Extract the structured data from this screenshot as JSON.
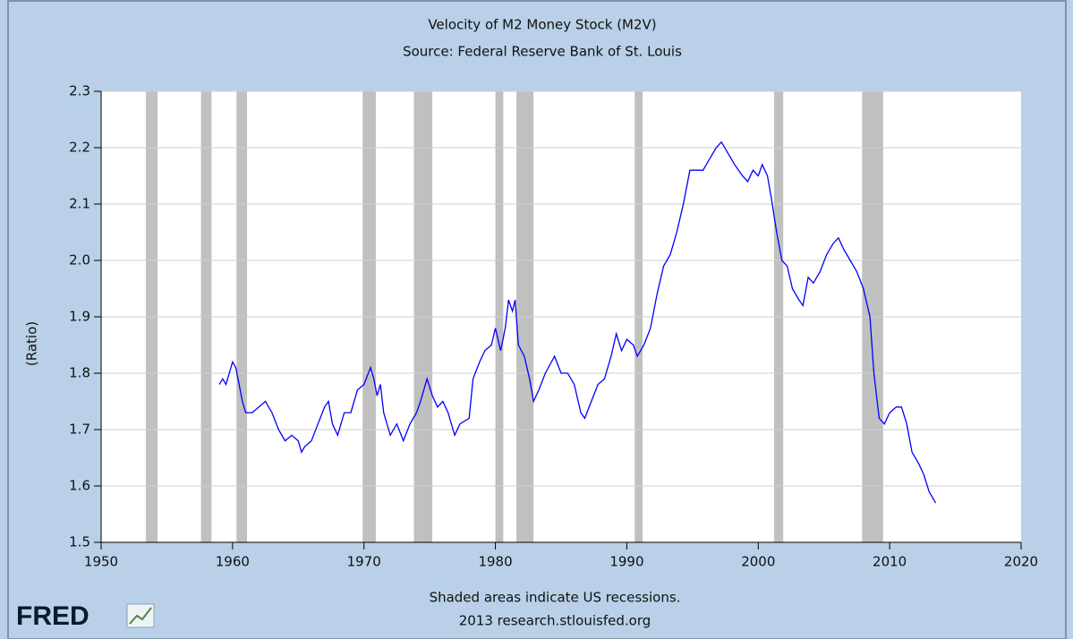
{
  "chart_data": {
    "type": "line",
    "title": "Velocity of M2 Money Stock (M2V)",
    "subtitle": "Source: Federal Reserve Bank of St. Louis",
    "y_label": "(Ratio)",
    "note": "Shaded areas indicate US recessions.",
    "source": "2013 research.stlouisfed.org",
    "logo": "FRED",
    "xlim": [
      1950,
      2020
    ],
    "xticks": [
      1950,
      1960,
      1970,
      1980,
      1990,
      2000,
      2010,
      2020
    ],
    "ylim": [
      1.5,
      2.3
    ],
    "yticks": [
      1.5,
      1.6,
      1.7,
      1.8,
      1.9,
      {
        "value": 2,
        "label": "2.0"
      },
      2.1,
      2.2,
      2.3
    ],
    "grid": true,
    "recession_color": "#c0c0c0",
    "recessions": [
      [
        1953.4,
        1954.3
      ],
      [
        1957.6,
        1958.4
      ],
      [
        1960.3,
        1961.1
      ],
      [
        1969.9,
        1970.9
      ],
      [
        1973.8,
        1975.2
      ],
      [
        1980.0,
        1980.6
      ],
      [
        1981.6,
        1982.9
      ],
      [
        1990.6,
        1991.2
      ],
      [
        2001.2,
        2001.9
      ],
      [
        2007.9,
        2009.5
      ]
    ],
    "series": [
      {
        "color": "#0000ff",
        "x": [
          1959.0,
          1959.25,
          1959.5,
          1959.75,
          1960.0,
          1960.25,
          1960.5,
          1960.75,
          1961.0,
          1961.5,
          1962.0,
          1962.5,
          1963.0,
          1963.5,
          1964.0,
          1964.5,
          1965.0,
          1965.25,
          1965.5,
          1966.0,
          1966.5,
          1967.0,
          1967.3,
          1967.6,
          1968.0,
          1968.5,
          1969.0,
          1969.5,
          1970.0,
          1970.5,
          1970.75,
          1971.0,
          1971.25,
          1971.5,
          1972.0,
          1972.5,
          1973.0,
          1973.5,
          1974.0,
          1974.3,
          1974.8,
          1975.2,
          1975.6,
          1976.0,
          1976.4,
          1976.9,
          1977.3,
          1978.0,
          1978.3,
          1978.8,
          1979.2,
          1979.7,
          1980.0,
          1980.4,
          1980.75,
          1981.0,
          1981.3,
          1981.5,
          1981.75,
          1982.2,
          1982.6,
          1982.9,
          1983.3,
          1983.8,
          1984.5,
          1985.0,
          1985.5,
          1986.0,
          1986.5,
          1986.8,
          1987.3,
          1987.8,
          1988.3,
          1988.8,
          1989.2,
          1989.6,
          1990.0,
          1990.5,
          1990.8,
          1991.3,
          1991.8,
          1992.3,
          1992.8,
          1993.3,
          1993.8,
          1994.3,
          1994.8,
          1995.3,
          1995.8,
          1996.3,
          1996.8,
          1997.2,
          1997.7,
          1998.2,
          1998.8,
          1999.2,
          1999.6,
          2000.0,
          2000.3,
          2000.7,
          2001.0,
          2001.4,
          2001.8,
          2002.2,
          2002.6,
          2003.1,
          2003.4,
          2003.8,
          2004.2,
          2004.7,
          2005.2,
          2005.7,
          2006.1,
          2006.5,
          2007.0,
          2007.5,
          2008.0,
          2008.5,
          2008.8,
          2009.2,
          2009.6,
          2010.0,
          2010.5,
          2010.9,
          2011.3,
          2011.7,
          2012.2,
          2012.6,
          2013.0,
          2013.5
        ],
        "values": [
          1.78,
          1.79,
          1.78,
          1.8,
          1.82,
          1.81,
          1.78,
          1.75,
          1.73,
          1.73,
          1.74,
          1.75,
          1.73,
          1.7,
          1.68,
          1.69,
          1.68,
          1.66,
          1.67,
          1.68,
          1.71,
          1.74,
          1.75,
          1.71,
          1.69,
          1.73,
          1.73,
          1.77,
          1.78,
          1.81,
          1.79,
          1.76,
          1.78,
          1.73,
          1.69,
          1.71,
          1.68,
          1.71,
          1.73,
          1.75,
          1.79,
          1.76,
          1.74,
          1.75,
          1.73,
          1.69,
          1.71,
          1.72,
          1.79,
          1.82,
          1.84,
          1.85,
          1.88,
          1.84,
          1.88,
          1.93,
          1.91,
          1.93,
          1.85,
          1.83,
          1.79,
          1.75,
          1.77,
          1.8,
          1.83,
          1.8,
          1.8,
          1.78,
          1.73,
          1.72,
          1.75,
          1.78,
          1.79,
          1.83,
          1.87,
          1.84,
          1.86,
          1.85,
          1.83,
          1.85,
          1.88,
          1.94,
          1.99,
          2.01,
          2.05,
          2.1,
          2.16,
          2.16,
          2.16,
          2.18,
          2.2,
          2.21,
          2.19,
          2.17,
          2.15,
          2.14,
          2.16,
          2.15,
          2.17,
          2.15,
          2.11,
          2.05,
          2.0,
          1.99,
          1.95,
          1.93,
          1.92,
          1.97,
          1.96,
          1.98,
          2.01,
          2.03,
          2.04,
          2.02,
          2.0,
          1.98,
          1.95,
          1.9,
          1.8,
          1.72,
          1.71,
          1.73,
          1.74,
          1.74,
          1.71,
          1.66,
          1.64,
          1.62,
          1.59,
          1.57
        ]
      }
    ]
  }
}
